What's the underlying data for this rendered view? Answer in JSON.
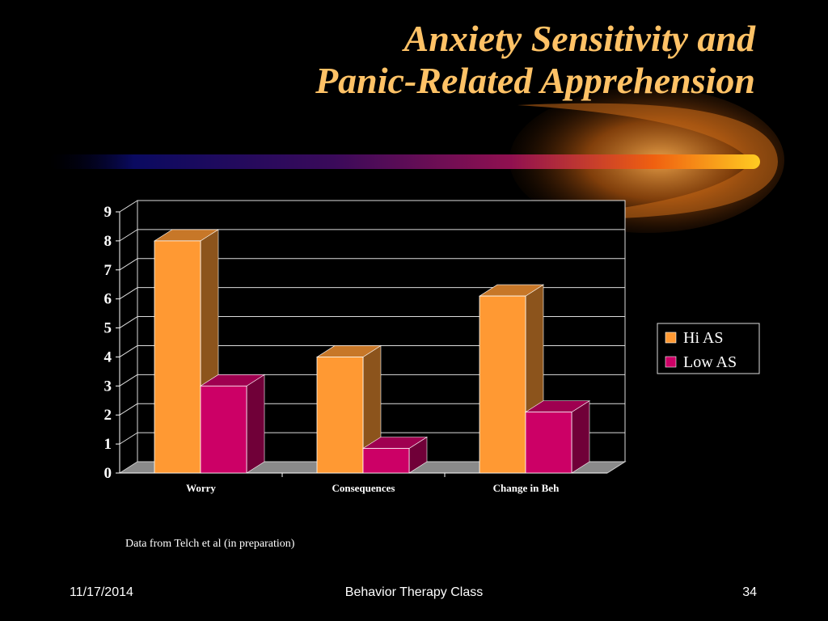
{
  "slide": {
    "title_line1": "Anxiety Sensitivity and",
    "title_line2": "Panic-Related Apprehension",
    "source_note": "Data from Telch et al (in preparation)",
    "footer_date": "11/17/2014",
    "footer_center": "Behavior Therapy Class",
    "footer_page": "34"
  },
  "chart_data": {
    "type": "bar",
    "categories": [
      "Worry",
      "Consequences",
      "Change in Beh"
    ],
    "series": [
      {
        "name": "Hi AS",
        "values": [
          8.0,
          4.0,
          6.1
        ],
        "color": "#ff9933"
      },
      {
        "name": "Low AS",
        "values": [
          3.0,
          0.85,
          2.1
        ],
        "color": "#cc0066"
      }
    ],
    "ylim": [
      0,
      9
    ],
    "yticks": [
      "0",
      "1",
      "2",
      "3",
      "4",
      "5",
      "6",
      "7",
      "8",
      "9"
    ],
    "grid": true,
    "legend": "right",
    "style": "3d-clustered"
  }
}
